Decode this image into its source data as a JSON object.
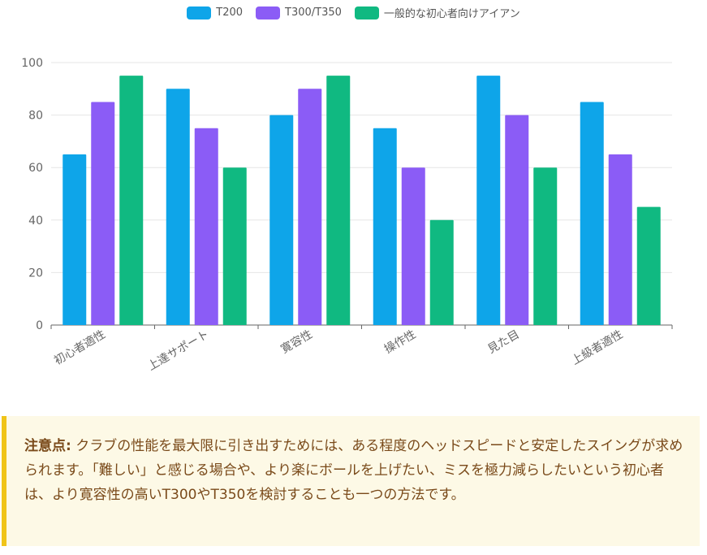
{
  "chart_data": {
    "type": "bar",
    "categories": [
      "初心者適性",
      "上達サポート",
      "寛容性",
      "操作性",
      "見た目",
      "上級者適性"
    ],
    "series": [
      {
        "name": "T200",
        "color": "#0ea5e9",
        "values": [
          65,
          90,
          80,
          75,
          95,
          85
        ]
      },
      {
        "name": "T300/T350",
        "color": "#8b5cf6",
        "values": [
          85,
          75,
          90,
          60,
          80,
          65
        ]
      },
      {
        "name": "一般的な初心者向けアイアン",
        "color": "#10b981",
        "values": [
          95,
          60,
          95,
          40,
          60,
          45
        ]
      }
    ],
    "ylim": [
      0,
      100
    ],
    "yticks": [
      0,
      20,
      40,
      60,
      80,
      100
    ],
    "grid": true,
    "legend": "top-center"
  },
  "note": {
    "label": "注意点:",
    "text": " クラブの性能を最大限に引き出すためには、ある程度のヘッドスピードと安定したスイングが求められます。「難しい」と感じる場合や、より楽にボールを上げたい、ミスを極力減らしたいという初心者は、より寛容性の高いT300やT350を検討することも一つの方法です。"
  }
}
